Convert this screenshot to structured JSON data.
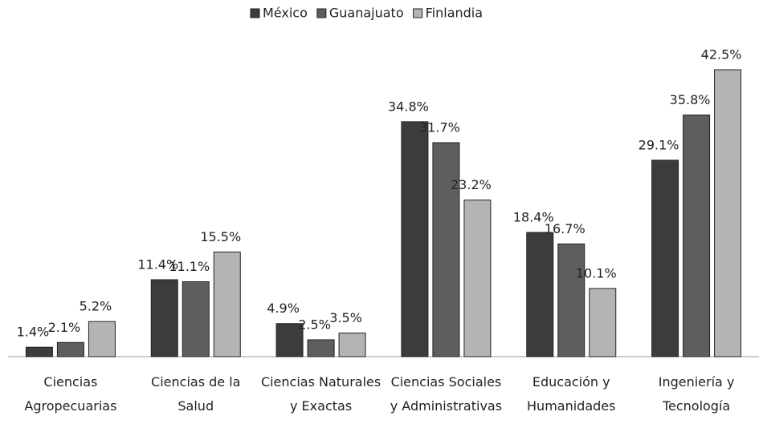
{
  "chart_data": {
    "type": "bar",
    "categories": [
      "Ciencias Agropecuarias",
      "Ciencias de la Salud",
      "Ciencias Naturales y Exactas",
      "Ciencias Sociales y Administrativas",
      "Educación y Humanidades",
      "Ingeniería y Tecnología"
    ],
    "series": [
      {
        "name": "México",
        "color": "#3c3c3c",
        "values": [
          1.4,
          11.4,
          4.9,
          34.8,
          18.4,
          29.1
        ],
        "value_labels": [
          "1.4%",
          "11.4%",
          "4.9%",
          "34.8%",
          "18.4%",
          "29.1%"
        ]
      },
      {
        "name": "Guanajuato",
        "color": "#5e5e5e",
        "values": [
          2.1,
          11.1,
          2.5,
          31.7,
          16.7,
          35.8
        ],
        "value_labels": [
          "2.1%",
          "11.1%",
          "2.5%",
          "31.7%",
          "16.7%",
          "35.8%"
        ]
      },
      {
        "name": "Finlandia",
        "color": "#b4b4b4",
        "values": [
          5.2,
          15.5,
          3.5,
          23.2,
          10.1,
          42.5
        ],
        "value_labels": [
          "5.2%",
          "15.5%",
          "3.5%",
          "23.2%",
          "10.1%",
          "42.5%"
        ]
      }
    ],
    "legend": "top"
  }
}
